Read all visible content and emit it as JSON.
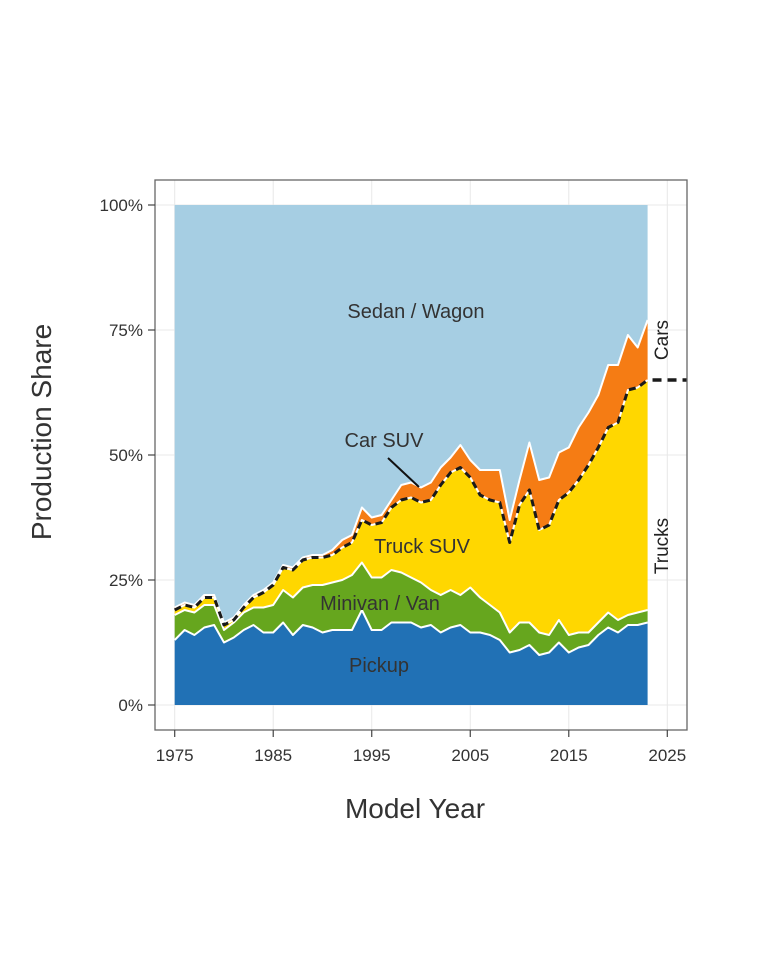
{
  "chart_data": {
    "type": "area",
    "stacked": true,
    "xlabel": "Model Year",
    "ylabel": "Production Share",
    "xlim": [
      1973,
      2027
    ],
    "ylim": [
      -5,
      105
    ],
    "x_ticks": [
      1975,
      1985,
      1995,
      2005,
      2015,
      2025
    ],
    "y_ticks": [
      0,
      25,
      50,
      75,
      100
    ],
    "y_tick_labels": [
      "0%",
      "25%",
      "50%",
      "75%",
      "100%"
    ],
    "grid": true,
    "x": [
      1975,
      1976,
      1977,
      1978,
      1979,
      1980,
      1981,
      1982,
      1983,
      1984,
      1985,
      1986,
      1987,
      1988,
      1989,
      1990,
      1991,
      1992,
      1993,
      1994,
      1995,
      1996,
      1997,
      1998,
      1999,
      2000,
      2001,
      2002,
      2003,
      2004,
      2005,
      2006,
      2007,
      2008,
      2009,
      2010,
      2011,
      2012,
      2013,
      2014,
      2015,
      2016,
      2017,
      2018,
      2019,
      2020,
      2021,
      2022,
      2023
    ],
    "series": [
      {
        "name": "Pickup",
        "color": "#2171b5",
        "values": [
          13.0,
          15.0,
          14.0,
          15.5,
          16.0,
          12.5,
          13.5,
          15.0,
          16.0,
          14.5,
          14.5,
          16.5,
          14.0,
          16.0,
          15.5,
          14.5,
          15.0,
          15.0,
          15.0,
          19.0,
          15.0,
          15.0,
          16.5,
          16.5,
          16.5,
          15.5,
          16.0,
          14.5,
          15.5,
          16.0,
          14.5,
          14.5,
          14.0,
          13.0,
          10.5,
          11.0,
          12.0,
          10.0,
          10.5,
          12.5,
          10.5,
          11.5,
          12.0,
          14.0,
          15.5,
          14.5,
          16.0,
          16.0,
          16.5
        ]
      },
      {
        "name": "Minivan/Van",
        "color": "#66a61e",
        "values": [
          5.0,
          4.0,
          4.5,
          4.5,
          4.0,
          2.5,
          3.0,
          3.5,
          3.5,
          5.0,
          5.5,
          6.5,
          7.5,
          7.5,
          8.5,
          9.5,
          9.5,
          10.0,
          11.0,
          9.5,
          10.5,
          10.5,
          10.5,
          10.0,
          9.0,
          9.0,
          7.0,
          7.5,
          7.5,
          6.0,
          9.0,
          7.0,
          6.0,
          5.5,
          4.0,
          5.5,
          4.5,
          4.5,
          3.5,
          4.5,
          3.5,
          3.0,
          2.5,
          2.5,
          3.0,
          2.5,
          2.0,
          2.5,
          2.5
        ]
      },
      {
        "name": "Truck SUV",
        "color": "#ffd700",
        "values": [
          1.0,
          1.0,
          1.0,
          1.5,
          1.5,
          1.0,
          0.5,
          1.0,
          2.0,
          3.0,
          4.0,
          4.5,
          5.5,
          5.5,
          5.5,
          5.5,
          5.5,
          6.5,
          6.5,
          8.5,
          10.5,
          11.0,
          12.5,
          14.5,
          16.0,
          16.0,
          18.0,
          22.0,
          23.5,
          25.5,
          22.0,
          20.5,
          21.0,
          22.0,
          18.0,
          23.5,
          26.5,
          20.5,
          22.0,
          24.0,
          28.5,
          30.5,
          33.5,
          35.0,
          37.0,
          39.5,
          45.0,
          45.0,
          46.0
        ]
      },
      {
        "name": "Car SUV",
        "color": "#f57c14",
        "values": [
          0.5,
          0.5,
          0.5,
          0.5,
          0.5,
          0.5,
          0.5,
          0.5,
          0.5,
          0.5,
          0.5,
          0.5,
          0.5,
          0.5,
          0.5,
          0.5,
          1.0,
          1.5,
          1.5,
          2.5,
          1.5,
          1.5,
          1.5,
          3.0,
          3.0,
          3.0,
          3.5,
          3.5,
          3.0,
          4.5,
          3.5,
          5.0,
          6.0,
          6.5,
          4.5,
          5.0,
          9.5,
          10.0,
          9.5,
          9.5,
          9.0,
          10.5,
          10.5,
          10.5,
          12.5,
          11.5,
          11.0,
          8.0,
          12.0
        ]
      },
      {
        "name": "Sedan / Wagon",
        "color": "#a6cee3",
        "values": [
          80.5,
          79.5,
          80.0,
          78.0,
          78.0,
          83.5,
          82.5,
          80.0,
          78.0,
          77.0,
          75.5,
          72.0,
          72.5,
          70.5,
          70.0,
          70.0,
          69.0,
          67.0,
          66.0,
          60.5,
          62.5,
          62.0,
          59.0,
          56.0,
          55.5,
          56.5,
          55.5,
          52.5,
          50.5,
          48.0,
          51.0,
          53.0,
          53.0,
          53.0,
          63.0,
          55.0,
          47.5,
          55.0,
          54.5,
          49.5,
          48.5,
          44.5,
          41.5,
          38.0,
          32.0,
          32.0,
          26.0,
          28.5,
          23.0
        ]
      }
    ],
    "area_labels": {
      "pickup": "Pickup",
      "minivan": "Minivan / Van",
      "truck_suv": "Truck SUV",
      "car_suv": "Car SUV",
      "sedan": "Sedan / Wagon"
    },
    "side_labels": {
      "cars": "Cars",
      "trucks": "Trucks"
    },
    "car_truck_boundary_latest": 65,
    "colors": {
      "panel_border": "#666666",
      "grid": "#e8e8e8",
      "divider": "#1a1a1a",
      "outline": "#ffffff"
    }
  }
}
